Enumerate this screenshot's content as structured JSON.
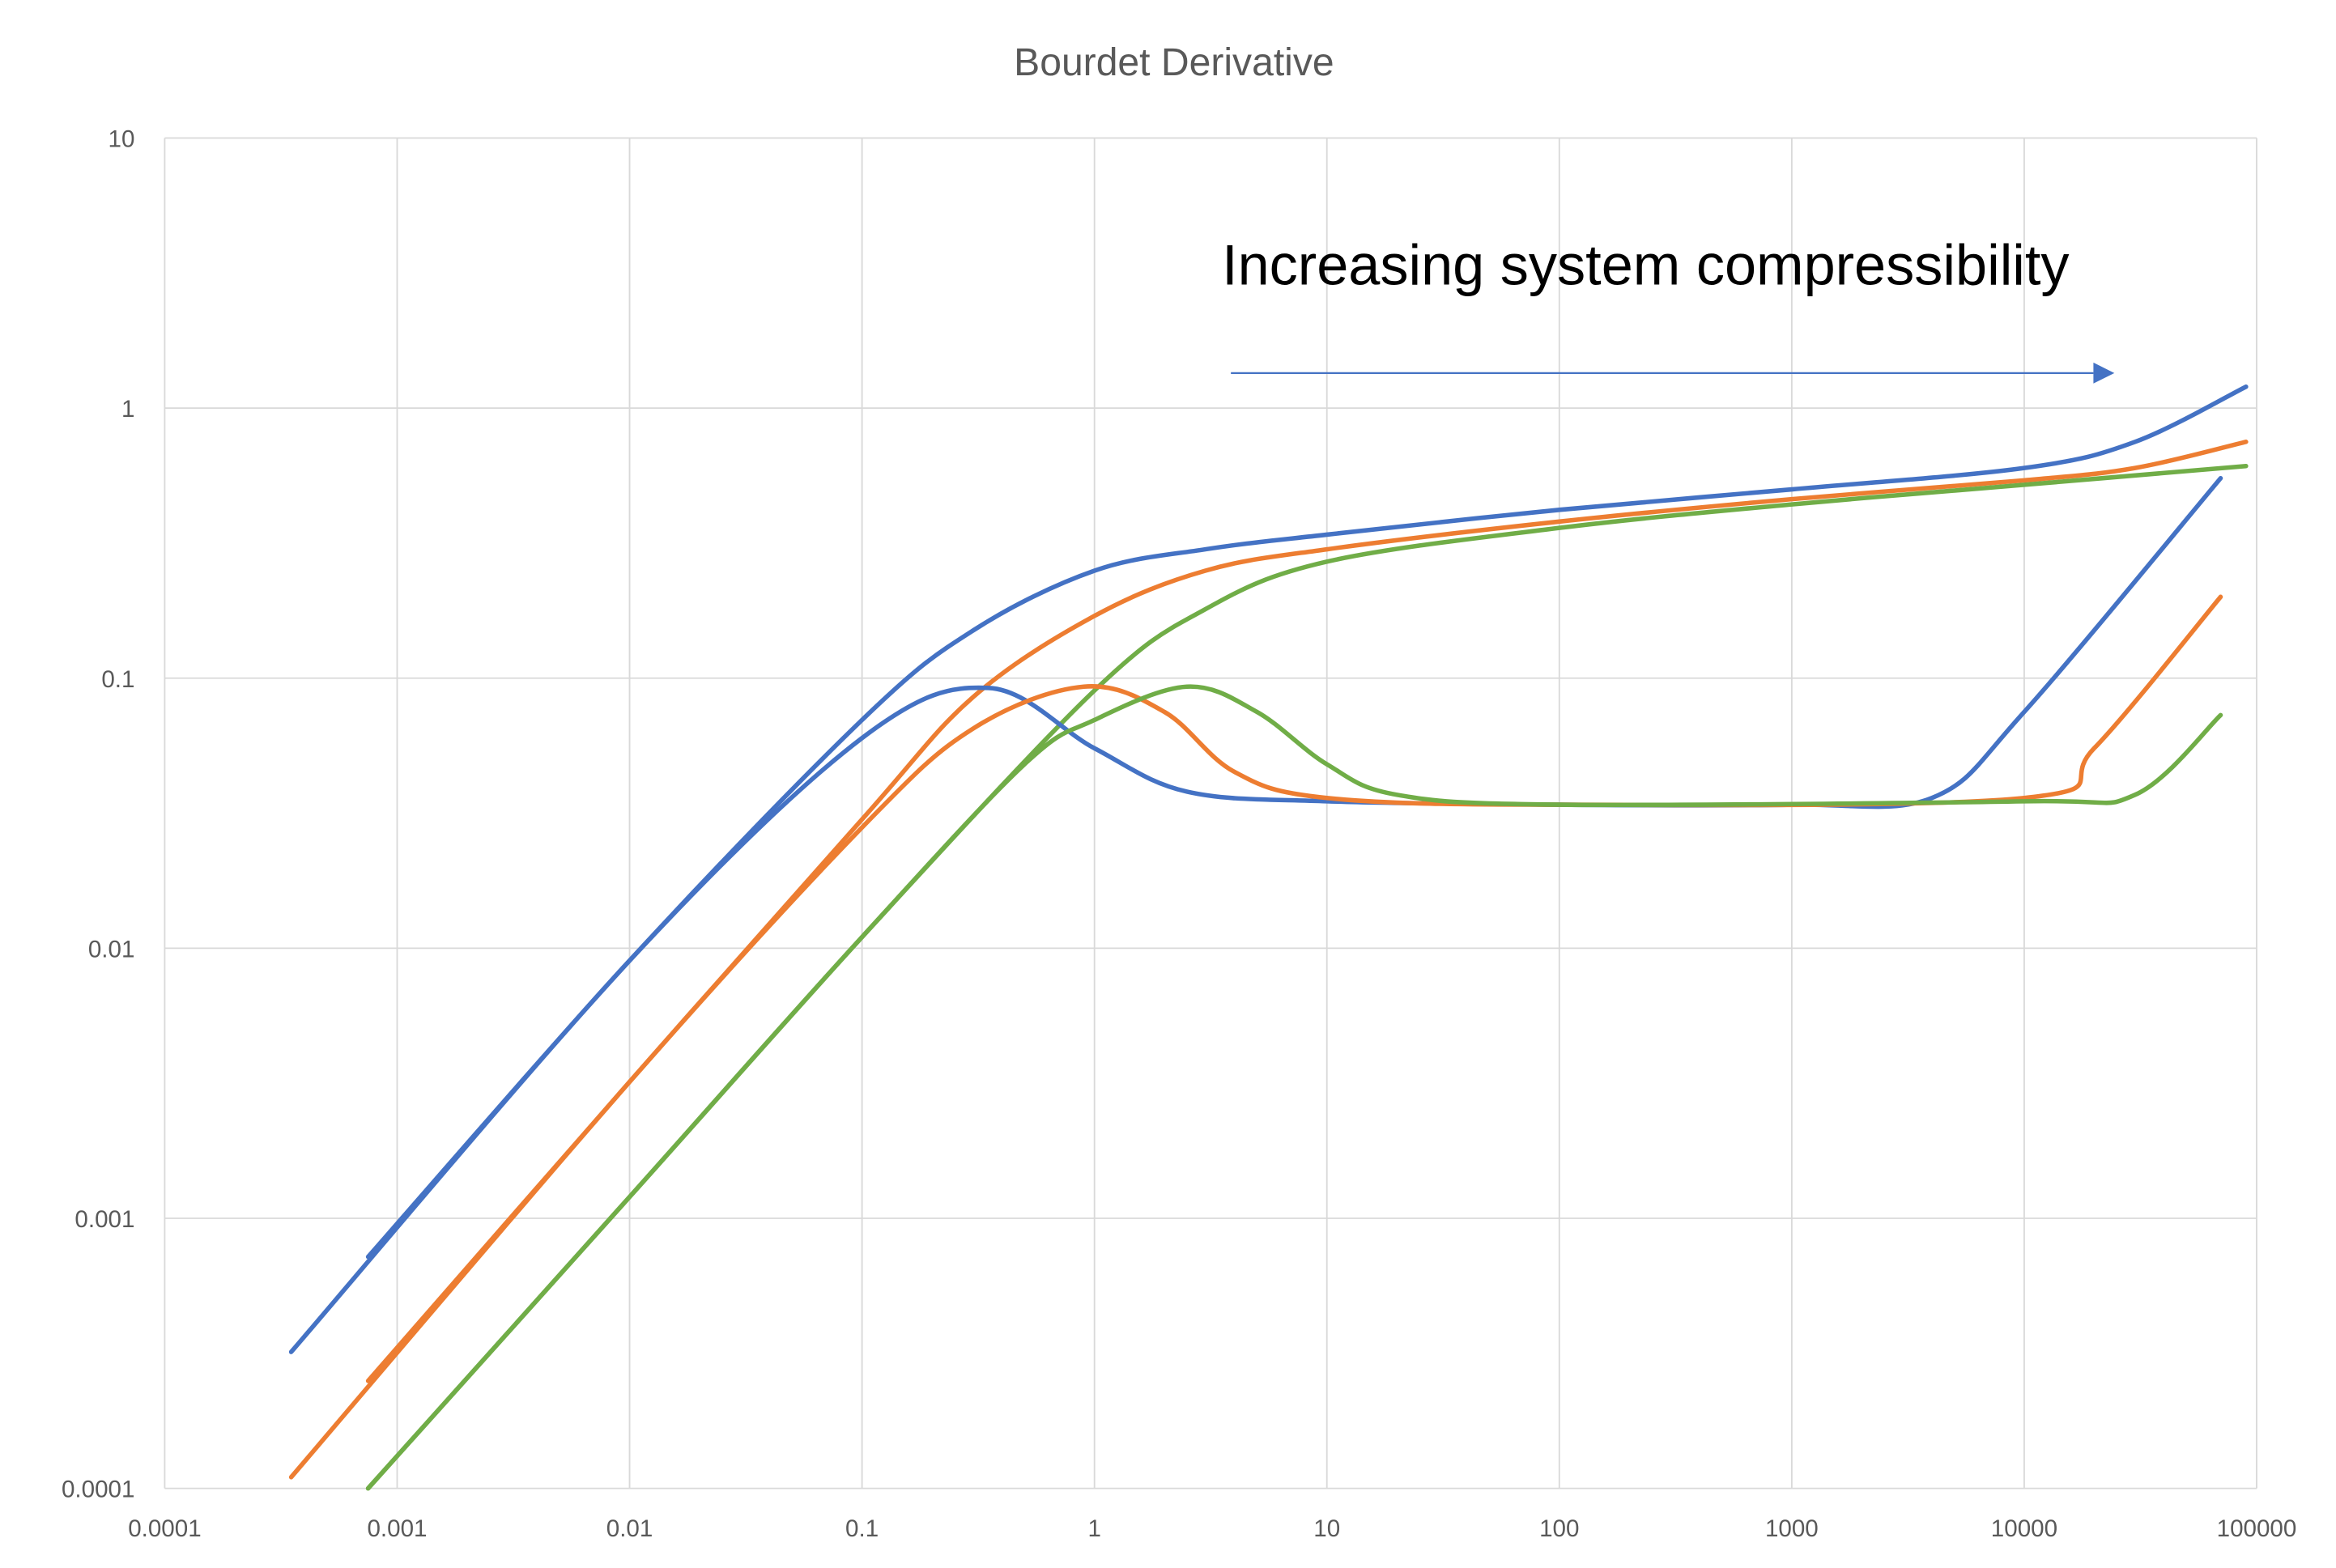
{
  "chart_data": {
    "type": "line",
    "title": "Bourdet Derivative",
    "xlabel": "",
    "ylabel": "",
    "x_scale": "log",
    "y_scale": "log",
    "xlim": [
      0.0001,
      100000
    ],
    "ylim": [
      0.0001,
      10
    ],
    "grid": true,
    "legend": "none",
    "x_ticks": [
      "0.0001",
      "0.001",
      "0.01",
      "0.1",
      "1",
      "10",
      "100",
      "1000",
      "10000",
      "100000"
    ],
    "y_ticks": [
      "0.0001",
      "0.001",
      "0.01",
      "0.1",
      "1",
      "10"
    ],
    "annotation": {
      "text": "Increasing system compressibility",
      "arrow_color": "#4472C4"
    },
    "series": [
      {
        "color": "#4472C4",
        "points": [
          [
            0.00075,
            0.00072
          ],
          [
            0.01,
            0.009
          ],
          [
            0.1,
            0.07
          ],
          [
            0.3,
            0.15
          ],
          [
            1,
            0.25
          ],
          [
            3,
            0.3
          ],
          [
            10,
            0.34
          ],
          [
            100,
            0.42
          ],
          [
            1000,
            0.5
          ],
          [
            10000,
            0.6
          ],
          [
            30000,
            0.75
          ],
          [
            90000,
            1.2
          ]
        ]
      },
      {
        "color": "#ED7D31",
        "points": [
          [
            0.00075,
            0.00025
          ],
          [
            0.01,
            0.0032
          ],
          [
            0.1,
            0.03
          ],
          [
            0.3,
            0.085
          ],
          [
            1,
            0.17
          ],
          [
            3,
            0.25
          ],
          [
            10,
            0.3
          ],
          [
            100,
            0.38
          ],
          [
            1000,
            0.46
          ],
          [
            10000,
            0.54
          ],
          [
            30000,
            0.6
          ],
          [
            90000,
            0.75
          ]
        ]
      },
      {
        "color": "#70AD47",
        "points": [
          [
            0.00075,
            0.0001
          ],
          [
            0.01,
            0.0012
          ],
          [
            0.1,
            0.011
          ],
          [
            1,
            0.09
          ],
          [
            3,
            0.18
          ],
          [
            10,
            0.27
          ],
          [
            100,
            0.36
          ],
          [
            1000,
            0.44
          ],
          [
            10000,
            0.52
          ],
          [
            90000,
            0.61
          ]
        ]
      },
      {
        "color": "#4472C4",
        "points": [
          [
            0.00035,
            0.00032
          ],
          [
            0.01,
            0.009
          ],
          [
            0.1,
            0.06
          ],
          [
            0.35,
            0.092
          ],
          [
            1,
            0.055
          ],
          [
            2.5,
            0.038
          ],
          [
            10,
            0.035
          ],
          [
            100,
            0.034
          ],
          [
            1000,
            0.034
          ],
          [
            4000,
            0.036
          ],
          [
            10000,
            0.075
          ],
          [
            70000,
            0.55
          ]
        ]
      },
      {
        "color": "#ED7D31",
        "points": [
          [
            0.00035,
            0.00011
          ],
          [
            0.01,
            0.0032
          ],
          [
            0.1,
            0.028
          ],
          [
            0.3,
            0.065
          ],
          [
            0.9,
            0.093
          ],
          [
            2,
            0.075
          ],
          [
            4,
            0.045
          ],
          [
            10,
            0.036
          ],
          [
            100,
            0.034
          ],
          [
            10000,
            0.036
          ],
          [
            20000,
            0.055
          ],
          [
            70000,
            0.2
          ]
        ]
      },
      {
        "color": "#70AD47",
        "points": [
          [
            0.00075,
            0.0001
          ],
          [
            0.01,
            0.0012
          ],
          [
            0.1,
            0.011
          ],
          [
            0.5,
            0.048
          ],
          [
            1,
            0.07
          ],
          [
            2.5,
            0.093
          ],
          [
            5,
            0.075
          ],
          [
            10,
            0.048
          ],
          [
            20,
            0.037
          ],
          [
            100,
            0.034
          ],
          [
            10000,
            0.035
          ],
          [
            30000,
            0.037
          ],
          [
            70000,
            0.073
          ]
        ]
      }
    ]
  }
}
